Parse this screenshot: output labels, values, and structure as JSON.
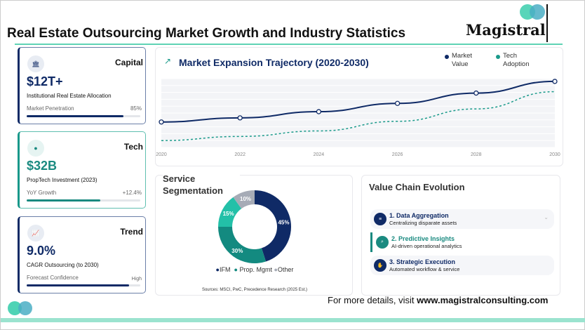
{
  "header": {
    "title": "Real Estate Outsourcing Market Growth and Industry Statistics",
    "logo_text": "Magistral"
  },
  "cards": [
    {
      "icon": "bank-icon",
      "title": "Capital",
      "value": "$12T+",
      "subtitle": "Institutional Real Estate Allocation",
      "metric_label": "Market Penetration",
      "metric_value": "85%",
      "fill_percent": 85
    },
    {
      "icon": "chip-icon",
      "title": "Tech",
      "value": "$32B",
      "subtitle": "PropTech Investment (2023)",
      "metric_label": "YoY Growth",
      "metric_value": "+12.4%",
      "fill_percent": 65
    },
    {
      "icon": "chart-icon",
      "title": "Trend",
      "value": "9.0%",
      "subtitle": "CAGR Outsourcing (to 2030)",
      "metric_label": "Forecast Confidence",
      "metric_value": "High",
      "fill_percent": 90
    }
  ],
  "chart_data": [
    {
      "type": "line",
      "title": "Market Expansion Trajectory (2020-2030)",
      "x": [
        "2020",
        "2022",
        "2024",
        "2026",
        "2028",
        "2030"
      ],
      "series": [
        {
          "name": "Market Value",
          "values": [
            37,
            43,
            52,
            64,
            79,
            96
          ],
          "color": "#0f2a66"
        },
        {
          "name": "Tech Adoption",
          "values": [
            10,
            16,
            24,
            38,
            56,
            81
          ],
          "color": "#1a9a8a"
        }
      ],
      "ylim": [
        0,
        100
      ],
      "grid": true,
      "legend": "top-right"
    },
    {
      "type": "pie",
      "title": "Service Segmentation",
      "slices": [
        {
          "label": "IFM",
          "value": 45,
          "color": "#0f2a66"
        },
        {
          "label": "Prop. Mgmt",
          "value": 30,
          "color": "#138a80"
        },
        {
          "label": "",
          "value": 15,
          "color": "#23c0a8"
        },
        {
          "label": "Other",
          "value": 10,
          "color": "#a6abb6"
        }
      ],
      "data_labels": [
        "45%",
        "30%",
        "15%",
        "10%"
      ],
      "legend_items": [
        "IFM",
        "Prop. Mgmt",
        "Other"
      ],
      "source": "Sources: MSCI, PwC, Precedence Research (2025 Est.)"
    }
  ],
  "value_chain": {
    "title": "Value Chain Evolution",
    "steps": [
      {
        "title": "1. Data Aggregation",
        "desc": "Centralizing disparate assets",
        "icon": "database-icon"
      },
      {
        "title": "2. Predictive Insights",
        "desc": "AI-driven operational analytics",
        "icon": "search-icon"
      },
      {
        "title": "3. Strategic Execution",
        "desc": "Automated workflow & service",
        "icon": "handshake-icon"
      }
    ]
  },
  "footer": {
    "prefix": "For more details, visit ",
    "url": "www.magistralconsulting.com"
  }
}
